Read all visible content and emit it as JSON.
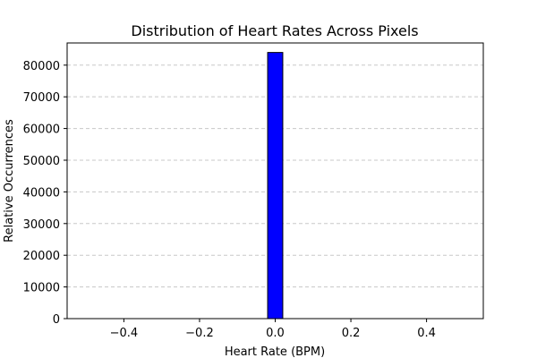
{
  "chart_data": {
    "type": "bar",
    "title": "Distribution of Heart Rates Across Pixels",
    "xlabel": "Heart Rate (BPM)",
    "ylabel": "Relative Occurrences",
    "xlim": [
      -0.55,
      0.55
    ],
    "ylim": [
      0,
      87000
    ],
    "x_ticks": [
      -0.4,
      -0.2,
      0.0,
      0.2,
      0.4
    ],
    "x_tick_labels": [
      "−0.4",
      "−0.2",
      "0.0",
      "0.2",
      "0.4"
    ],
    "y_ticks": [
      0,
      10000,
      20000,
      30000,
      40000,
      50000,
      60000,
      70000,
      80000
    ],
    "y_tick_labels": [
      "0",
      "10000",
      "20000",
      "30000",
      "40000",
      "50000",
      "60000",
      "70000",
      "80000"
    ],
    "grid": "y-dashed",
    "bar_color": "#0000ff",
    "bar_edge_color": "#000000",
    "bin_range": [
      -0.5,
      0.5
    ],
    "bins": [
      {
        "start": -0.02,
        "end": 0.02,
        "value": 84000
      }
    ]
  }
}
